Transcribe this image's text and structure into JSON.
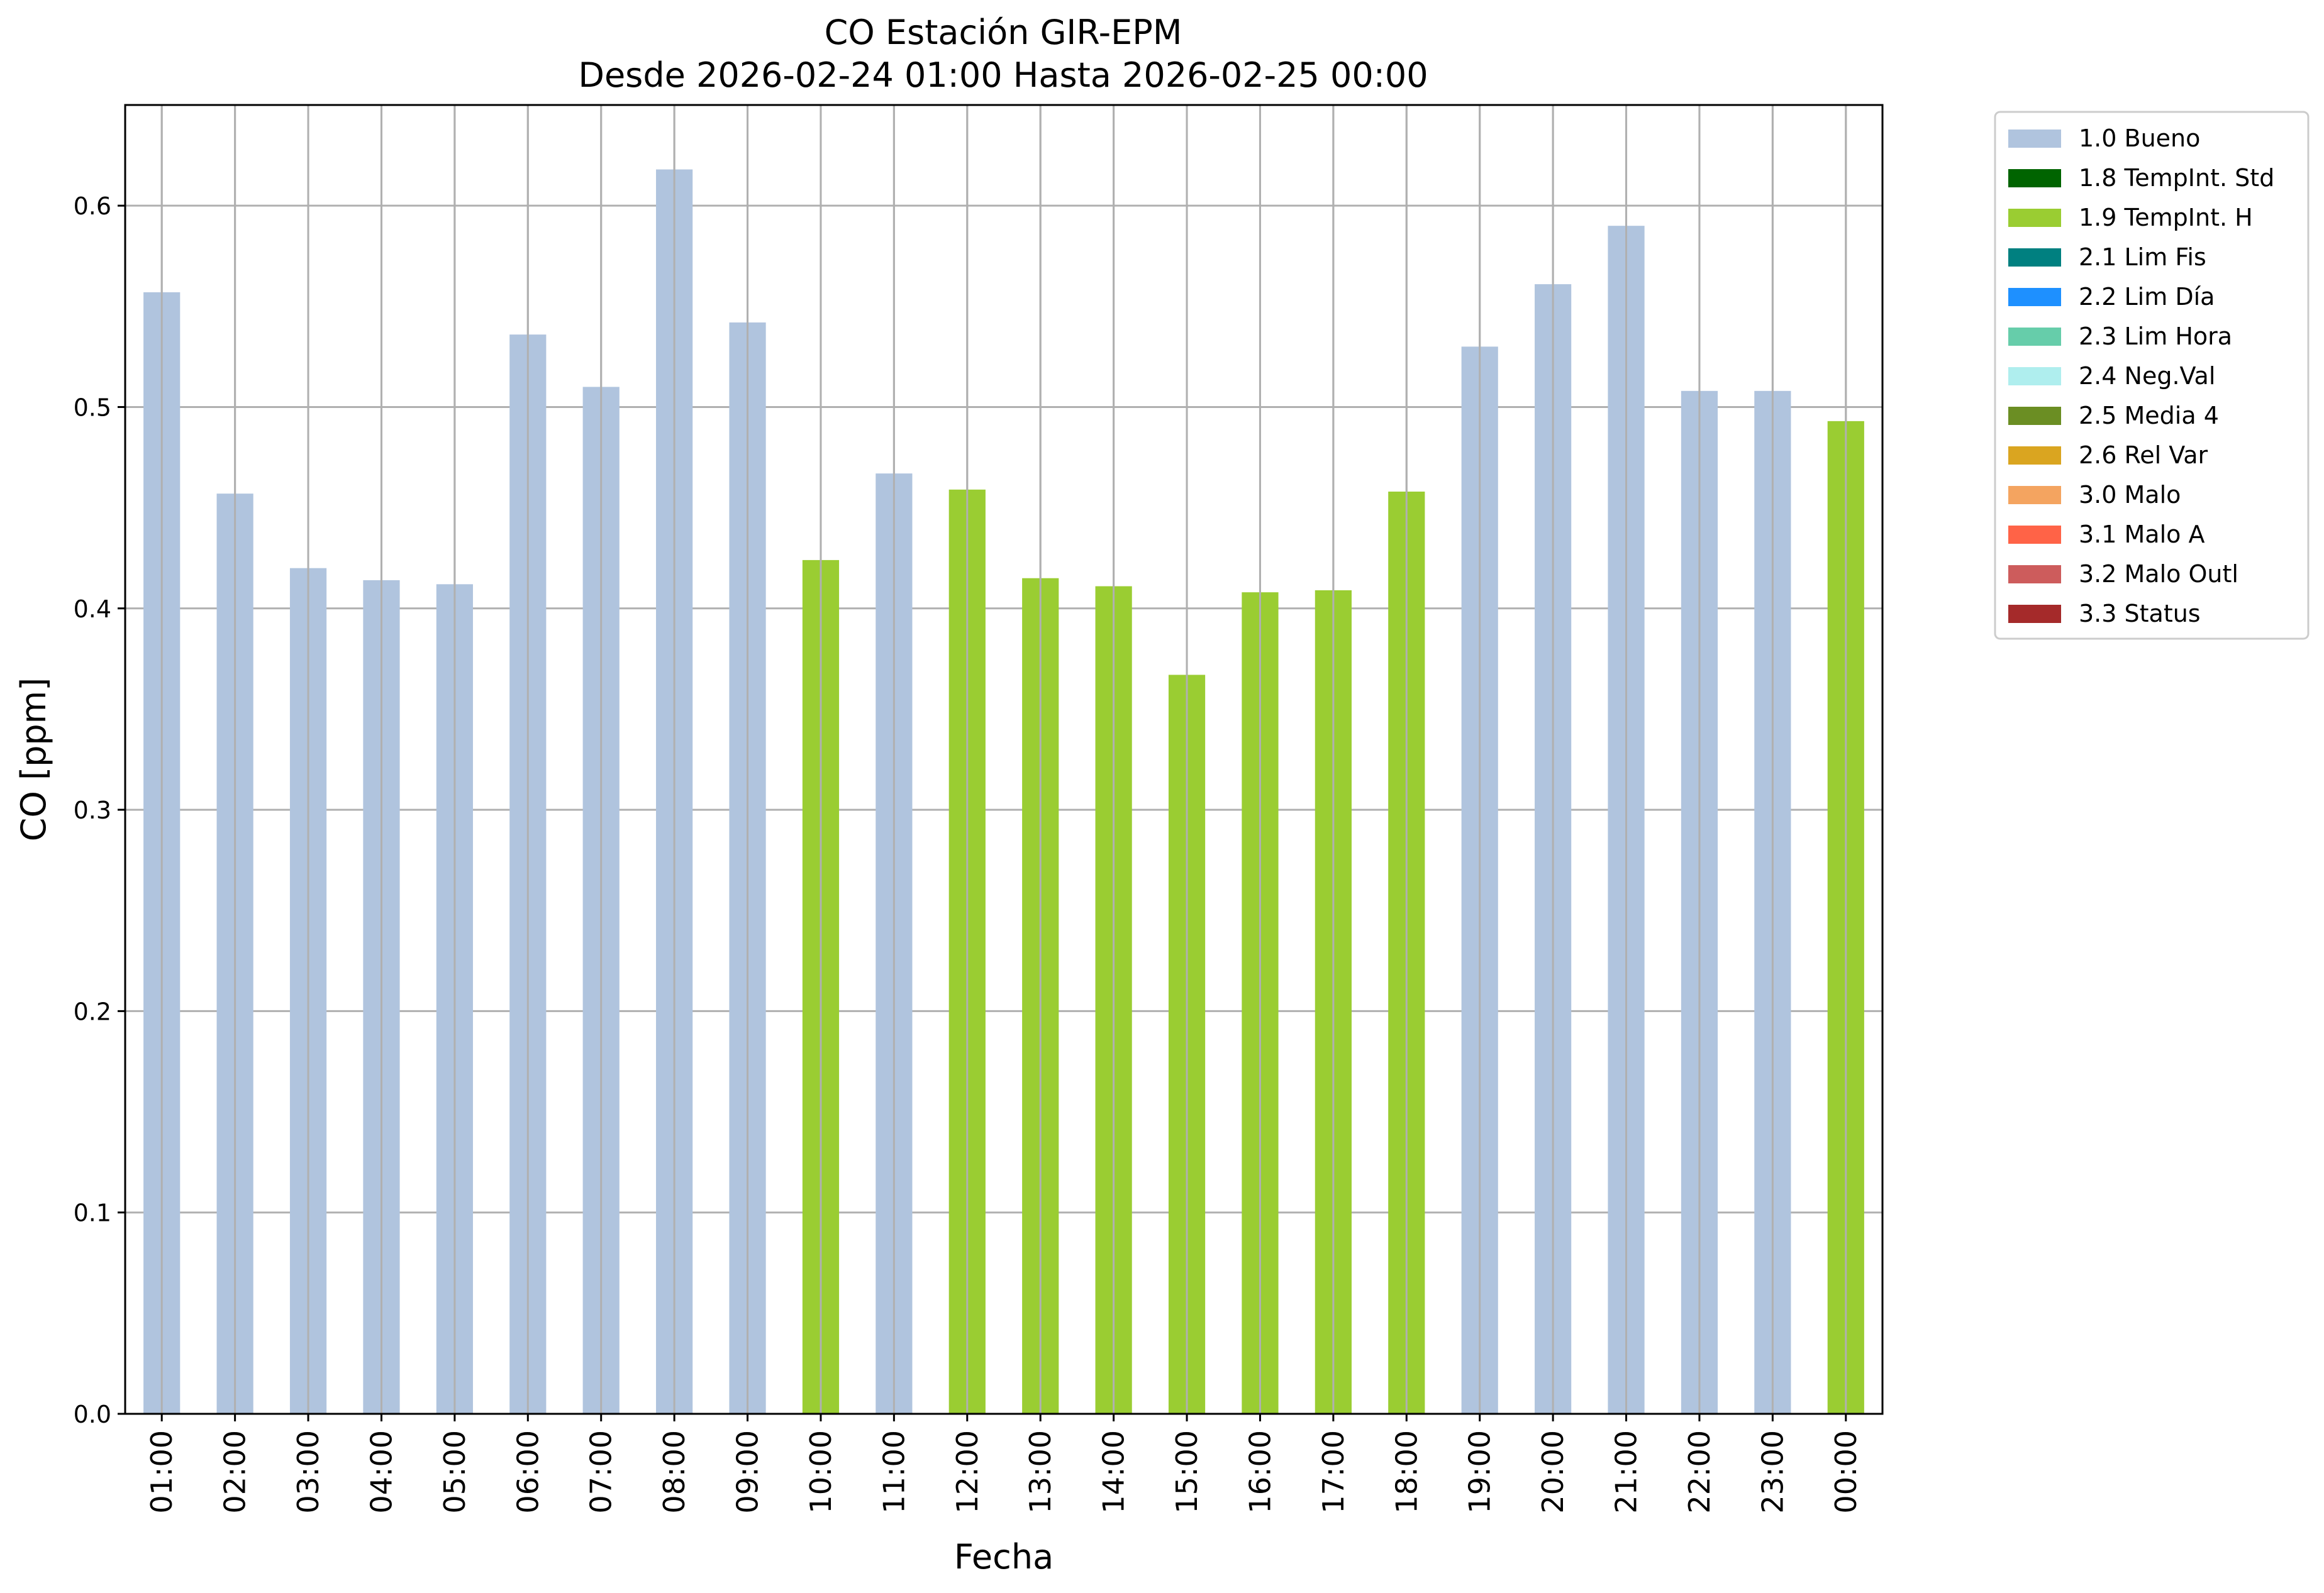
{
  "chart_data": {
    "type": "bar",
    "title": "CO Estación GIR-EPM",
    "subtitle": "Desde 2026-02-24 01:00 Hasta 2026-02-25 00:00",
    "xlabel": "Fecha",
    "ylabel": "CO [ppm]",
    "ylim": [
      0,
      0.65
    ],
    "yticks": [
      "0.0",
      "0.1",
      "0.2",
      "0.3",
      "0.4",
      "0.5",
      "0.6"
    ],
    "grid": true,
    "legend_position": "outside-top-right",
    "categories": [
      "01:00",
      "02:00",
      "03:00",
      "04:00",
      "05:00",
      "06:00",
      "07:00",
      "08:00",
      "09:00",
      "10:00",
      "11:00",
      "12:00",
      "13:00",
      "14:00",
      "15:00",
      "16:00",
      "17:00",
      "18:00",
      "19:00",
      "20:00",
      "21:00",
      "22:00",
      "23:00",
      "00:00"
    ],
    "values": [
      0.557,
      0.457,
      0.42,
      0.414,
      0.412,
      0.536,
      0.51,
      0.618,
      0.542,
      0.424,
      0.467,
      0.459,
      0.415,
      0.411,
      0.367,
      0.408,
      0.409,
      0.458,
      0.53,
      0.561,
      0.59,
      0.508,
      0.508,
      0.493
    ],
    "flags": [
      "1.0 Bueno",
      "1.0 Bueno",
      "1.0 Bueno",
      "1.0 Bueno",
      "1.0 Bueno",
      "1.0 Bueno",
      "1.0 Bueno",
      "1.0 Bueno",
      "1.0 Bueno",
      "1.9 TempInt. H",
      "1.0 Bueno",
      "1.9 TempInt. H",
      "1.9 TempInt. H",
      "1.9 TempInt. H",
      "1.9 TempInt. H",
      "1.9 TempInt. H",
      "1.9 TempInt. H",
      "1.9 TempInt. H",
      "1.0 Bueno",
      "1.0 Bueno",
      "1.0 Bueno",
      "1.0 Bueno",
      "1.0 Bueno",
      "1.9 TempInt. H"
    ],
    "legend": [
      {
        "label": "1.0 Bueno",
        "color": "#b0c4de"
      },
      {
        "label": "1.8 TempInt. Std",
        "color": "#006400"
      },
      {
        "label": "1.9 TempInt. H",
        "color": "#9acd32"
      },
      {
        "label": "2.1 Lim Fis",
        "color": "#008080"
      },
      {
        "label": "2.2 Lim Día",
        "color": "#1e90ff"
      },
      {
        "label": "2.3 Lim Hora",
        "color": "#66cdaa"
      },
      {
        "label": "2.4 Neg.Val",
        "color": "#afeeee"
      },
      {
        "label": "2.5 Media 4",
        "color": "#6b8e23"
      },
      {
        "label": "2.6 Rel Var",
        "color": "#daa520"
      },
      {
        "label": "3.0 Malo",
        "color": "#f4a460"
      },
      {
        "label": "3.1 Malo A",
        "color": "#ff6347"
      },
      {
        "label": "3.2 Malo Outl",
        "color": "#cd5c5c"
      },
      {
        "label": "3.3 Status",
        "color": "#a52a2a"
      }
    ]
  }
}
